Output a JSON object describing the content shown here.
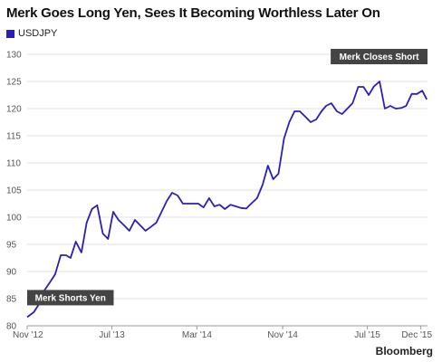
{
  "title": "Merk Goes Long Yen, Sees It Becoming Worthless Later On",
  "source": "Bloomberg",
  "colors": {
    "line": "#2b1fb8",
    "annotation_bg": "#444444",
    "grid": "#e2e2e2"
  },
  "chart_data": {
    "type": "line",
    "title": "Merk Goes Long Yen, Sees It Becoming Worthless Later On",
    "series": [
      {
        "name": "USDJPY",
        "x": [
          "2012-11-01",
          "2012-11-20",
          "2012-12-05",
          "2012-12-20",
          "2013-01-05",
          "2013-01-20",
          "2013-02-05",
          "2013-02-20",
          "2013-03-05",
          "2013-03-20",
          "2013-04-05",
          "2013-04-20",
          "2013-05-05",
          "2013-05-20",
          "2013-06-05",
          "2013-06-20",
          "2013-07-05",
          "2013-07-20",
          "2013-08-05",
          "2013-08-20",
          "2013-09-05",
          "2013-09-20",
          "2013-10-05",
          "2013-10-20",
          "2013-11-05",
          "2013-11-20",
          "2013-12-05",
          "2013-12-20",
          "2014-01-05",
          "2014-01-20",
          "2014-02-05",
          "2014-02-20",
          "2014-03-05",
          "2014-03-20",
          "2014-04-05",
          "2014-04-20",
          "2014-05-05",
          "2014-05-20",
          "2014-06-05",
          "2014-06-20",
          "2014-07-05",
          "2014-07-20",
          "2014-08-05",
          "2014-08-20",
          "2014-09-05",
          "2014-09-20",
          "2014-10-05",
          "2014-10-20",
          "2014-11-05",
          "2014-11-20",
          "2014-12-05",
          "2014-12-20",
          "2015-01-05",
          "2015-01-20",
          "2015-02-05",
          "2015-02-20",
          "2015-03-05",
          "2015-03-20",
          "2015-04-05",
          "2015-04-20",
          "2015-05-05",
          "2015-05-20",
          "2015-06-05",
          "2015-06-20",
          "2015-07-05",
          "2015-07-20",
          "2015-08-05",
          "2015-08-20",
          "2015-09-05",
          "2015-09-20",
          "2015-10-05",
          "2015-10-20",
          "2015-11-05",
          "2015-11-20",
          "2015-12-05",
          "2015-12-18"
        ],
        "values": [
          81.6,
          82.5,
          84,
          86.5,
          88,
          89.5,
          93,
          93,
          92.5,
          95.5,
          93.5,
          99,
          101.5,
          102.2,
          97,
          96,
          101,
          99.5,
          98.5,
          97.5,
          99.5,
          98.5,
          97.5,
          98.2,
          99,
          101,
          103,
          104.5,
          104,
          102.5,
          102.5,
          102.5,
          102.5,
          101.8,
          103.5,
          102,
          102.3,
          101.5,
          102.3,
          102,
          101.7,
          101.6,
          102.6,
          103.5,
          106,
          109.5,
          107,
          108,
          114.5,
          117.5,
          119.5,
          119.5,
          118.5,
          117.5,
          118,
          119.5,
          120.5,
          121,
          119.5,
          119,
          120,
          121,
          124,
          124,
          122.5,
          124.1,
          125,
          120,
          120.5,
          120,
          120.1,
          120.5,
          122.7,
          122.7,
          123.3,
          121.7
        ]
      }
    ],
    "xlabel": "",
    "ylabel": "",
    "x_ticks": [
      "Nov '12",
      "Jul '13",
      "Mar '14",
      "Nov '14",
      "Jul '15",
      "Dec '15"
    ],
    "y_ticks": [
      80,
      85,
      90,
      95,
      100,
      105,
      110,
      115,
      120,
      125,
      130
    ],
    "ylim": [
      80,
      130
    ],
    "grid": true,
    "legend": "top-left",
    "annotations": [
      {
        "text": "Merk Shorts Yen",
        "x": "2012-11-01",
        "y": 81.6
      },
      {
        "text": "Merk Closes Short",
        "x": "2015-08-05",
        "y": 125
      }
    ]
  }
}
